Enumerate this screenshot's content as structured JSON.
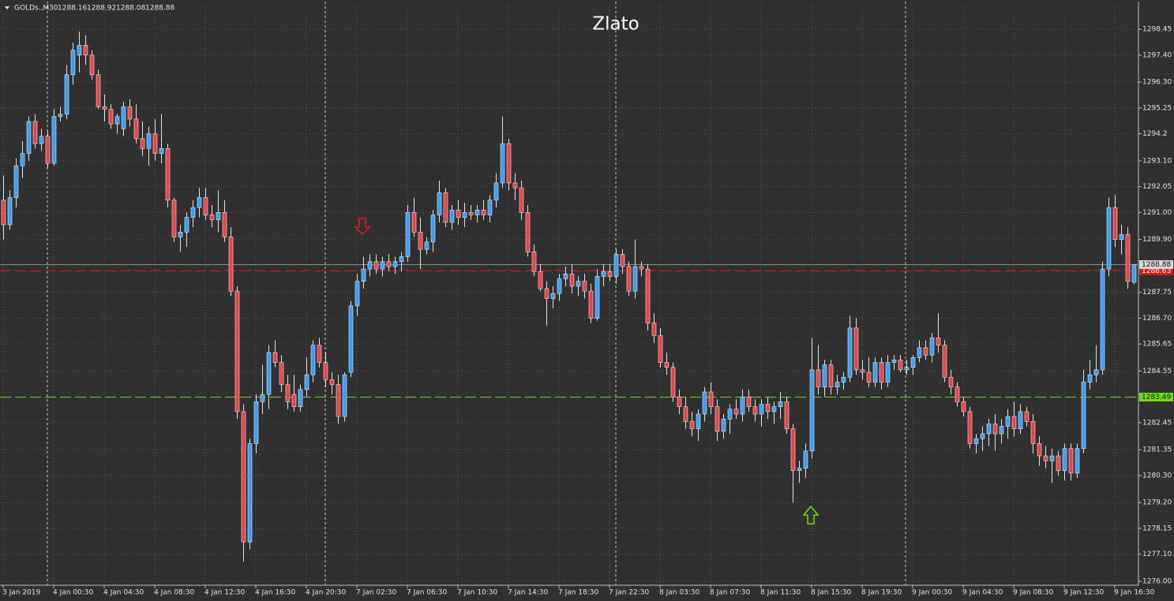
{
  "chart_data": {
    "type": "candlestick",
    "symbol": "GOLDs.,M30",
    "title": "Zlato",
    "up_color": "#3d9df0",
    "down_color": "#e0474c",
    "wick_color": "#e6e6e6",
    "grid": true,
    "ylim": [
      1275.84,
      1299.48
    ],
    "yticks": [
      1298.45,
      {
        "value": 1297.4,
        "label": "1297.40"
      },
      {
        "value": 1296.3,
        "label": "1296.30"
      },
      1295.25,
      1294.2,
      {
        "value": 1293.1,
        "label": "1293.10"
      },
      1292.05,
      {
        "value": 1291,
        "label": "1291.00"
      },
      {
        "value": 1289.9,
        "label": "1289.90"
      },
      1287.75,
      {
        "value": 1286.7,
        "label": "1286.70"
      },
      1285.65,
      1284.55,
      1282.45,
      1281.35,
      {
        "value": 1280.3,
        "label": "1280.30"
      },
      {
        "value": 1279.2,
        "label": "1279.20"
      },
      1278.15,
      {
        "value": 1277.1,
        "label": "1277.10"
      },
      {
        "value": 1276,
        "label": "1276.00"
      }
    ],
    "hlines": [
      {
        "value": 1288.63,
        "color": "#e01818"
      },
      {
        "value": 1283.49,
        "color": "#6ee000"
      }
    ],
    "categories": [
      "3 Jan 2019",
      null,
      null,
      null,
      null,
      null,
      null,
      null,
      "4 Jan 00:30",
      null,
      null,
      null,
      null,
      null,
      null,
      null,
      "4 Jan 04:30",
      null,
      null,
      null,
      null,
      null,
      null,
      null,
      "4 Jan 08:30",
      null,
      null,
      null,
      null,
      null,
      null,
      null,
      "4 Jan 12:30",
      null,
      null,
      null,
      null,
      null,
      null,
      null,
      "4 Jan 16:30",
      null,
      null,
      null,
      null,
      null,
      null,
      null,
      "4 Jan 20:30",
      null,
      null,
      null,
      null,
      null,
      null,
      null,
      "7 Jan 02:30",
      null,
      null,
      null,
      null,
      null,
      null,
      null,
      "7 Jan 06:30",
      null,
      null,
      null,
      null,
      null,
      null,
      null,
      "7 Jan 10:30",
      null,
      null,
      null,
      null,
      null,
      null,
      null,
      "7 Jan 14:30",
      null,
      null,
      null,
      null,
      null,
      null,
      null,
      "7 Jan 18:30",
      null,
      null,
      null,
      null,
      null,
      null,
      null,
      "7 Jan 22:30",
      null,
      null,
      null,
      null,
      null,
      null,
      null,
      "8 Jan 03:30",
      null,
      null,
      null,
      null,
      null,
      null,
      null,
      "8 Jan 07:30",
      null,
      null,
      null,
      null,
      null,
      null,
      null,
      "8 Jan 11:30",
      null,
      null,
      null,
      null,
      null,
      null,
      null,
      "8 Jan 15:30",
      null,
      null,
      null,
      null,
      null,
      null,
      null,
      "8 Jan 19:30",
      null,
      null,
      null,
      null,
      null,
      null,
      null,
      "9 Jan 00:30",
      null,
      null,
      null,
      null,
      null,
      null,
      null,
      "9 Jan 04:30",
      null,
      null,
      null,
      null,
      null,
      null,
      null,
      "9 Jan 08:30",
      null,
      null,
      null,
      null,
      null,
      null,
      null,
      "9 Jan 12:30",
      null,
      null,
      null,
      null,
      null,
      null,
      null,
      "9 Jan 16:30",
      null,
      null,
      null
    ],
    "open": [
      1291.5,
      1290.5,
      1291.6,
      1292.9,
      1293.4,
      1294.7,
      1293.8,
      1294.1,
      1293,
      1294.9,
      1295,
      1296.6,
      1297.4,
      1297.8,
      1297.4,
      1296.6,
      1295.3,
      1295.2,
      1294.6,
      1294.4,
      1295.3,
      1294.8,
      1294,
      1293.6,
      1294.2,
      1293.4,
      1293.6,
      1291.5,
      1290,
      1290.2,
      1290.8,
      1291.2,
      1291.6,
      1290.9,
      1290.7,
      1291,
      1290,
      1287.8,
      1282.9,
      1277.6,
      1281.6,
      1283.3,
      1283.6,
      1285.3,
      1284.9,
      1284,
      1283.6,
      1283.1,
      1283.8,
      1284.4,
      1285.6,
      1284.9,
      1284.2,
      1284,
      1282.7,
      1284.5,
      1287.2,
      1288.2,
      1288.7,
      1289,
      1288.7,
      1289,
      1288.8,
      1289,
      1289.2,
      1291,
      1290.2,
      1289.5,
      1289.8,
      1290.9,
      1291.8,
      1290.6,
      1291.1,
      1290.8,
      1291,
      1290.9,
      1291.1,
      1290.9,
      1291.5,
      1292.2,
      1293.8,
      1292.2,
      1292,
      1291,
      1289.4,
      1288.6,
      1287.9,
      1287.5,
      1287.7,
      1288.3,
      1288.5,
      1288,
      1288.2,
      1287.8,
      1286.7,
      1288.4,
      1288.6,
      1288.4,
      1289.3,
      1288.8,
      1287.8,
      1288.8,
      1288.7,
      1286.5,
      1286,
      1284.9,
      1284.7,
      1283.5,
      1283.1,
      1282.5,
      1282.2,
      1282.8,
      1283.7,
      1283.1,
      1282.1,
      1282.6,
      1283,
      1282.8,
      1283.5,
      1283.1,
      1282.8,
      1283.2,
      1282.9,
      1283.1,
      1283.3,
      1282.2,
      1280.5,
      1280.6,
      1281.3,
      1284.6,
      1283.9,
      1284.8,
      1283.9,
      1284.1,
      1284.3,
      1286.3,
      1284.6,
      1284.5,
      1284.1,
      1284.9,
      1284.1,
      1284.9,
      1285,
      1284.6,
      1284.7,
      1285.1,
      1285.5,
      1285.2,
      1285.9,
      1285.6,
      1284.3,
      1283.9,
      1283.3,
      1282.9,
      1281.6,
      1281.8,
      1282,
      1282.4,
      1282,
      1282.3,
      1282.7,
      1282.2,
      1282.9,
      1282.5,
      1281.6,
      1281.1,
      1280.9,
      1281.1,
      1280.5,
      1281.4,
      1280.4,
      1281.4,
      1284.1,
      1284.4,
      1284.6,
      1288.7,
      1291.2,
      1289.9,
      1290.1,
      1288.16
    ],
    "high": [
      1292.5,
      1291.9,
      1293.2,
      1293.9,
      1294.9,
      1295,
      1294.4,
      1294.3,
      1295.2,
      1295.3,
      1297,
      1297.9,
      1298.35,
      1298.2,
      1297.6,
      1296.8,
      1295.8,
      1295.4,
      1295,
      1295.5,
      1295.6,
      1295.4,
      1294.7,
      1294.5,
      1294.8,
      1295,
      1293.8,
      1291.6,
      1290.5,
      1291,
      1291.5,
      1292,
      1292,
      1291.3,
      1291.9,
      1291.5,
      1290.4,
      1288,
      1283.2,
      1281.8,
      1283.6,
      1284.8,
      1285.6,
      1285.8,
      1285.2,
      1284.4,
      1284.4,
      1284,
      1285.1,
      1285.8,
      1285.9,
      1285.3,
      1284.5,
      1284.4,
      1284.5,
      1287.4,
      1288.5,
      1289.2,
      1289.3,
      1289.3,
      1289.2,
      1289.3,
      1289.2,
      1289.4,
      1291.3,
      1291.6,
      1290.8,
      1290,
      1291.1,
      1292.3,
      1292,
      1291.3,
      1291.5,
      1291.4,
      1291.3,
      1291.3,
      1291.5,
      1291.7,
      1292.6,
      1294.9,
      1294,
      1292.6,
      1292.3,
      1291.3,
      1289.7,
      1288.9,
      1288.2,
      1288,
      1288.5,
      1288.8,
      1288.9,
      1288.4,
      1288.5,
      1288.1,
      1288.7,
      1288.9,
      1288.9,
      1289.5,
      1289.5,
      1289,
      1289.9,
      1289,
      1288.9,
      1286.9,
      1286.3,
      1285.3,
      1284.9,
      1283.8,
      1283.5,
      1282.9,
      1283,
      1283.9,
      1284.1,
      1283.4,
      1282.8,
      1283.2,
      1283.4,
      1283.8,
      1283.8,
      1283.4,
      1283.4,
      1283.5,
      1283.3,
      1283.7,
      1283.5,
      1282.4,
      1280.9,
      1281.6,
      1285.9,
      1285.6,
      1285,
      1285,
      1284.4,
      1284.5,
      1286.8,
      1286.7,
      1285,
      1285.1,
      1285.1,
      1285.1,
      1285.2,
      1285.2,
      1285.2,
      1285,
      1285.2,
      1285.8,
      1285.8,
      1286.1,
      1286.9,
      1285.8,
      1284.6,
      1284.1,
      1283.5,
      1283.1,
      1282,
      1282.3,
      1282.6,
      1282.8,
      1282.6,
      1283,
      1283.3,
      1283.2,
      1283.1,
      1282.8,
      1281.9,
      1281.5,
      1281.4,
      1281.3,
      1281.6,
      1281.6,
      1281.6,
      1284.6,
      1285,
      1285.6,
      1289,
      1291.6,
      1291.7,
      1290.5,
      1290.4,
      1288.92
    ],
    "low": [
      1289.9,
      1290.3,
      1291.2,
      1292.4,
      1293.1,
      1293.6,
      1293.5,
      1292.8,
      1292.9,
      1294.7,
      1294.8,
      1296.2,
      1296.7,
      1297,
      1296.4,
      1295.2,
      1294.7,
      1294.4,
      1294.2,
      1294.1,
      1294.5,
      1293.8,
      1293.3,
      1292.9,
      1293.1,
      1293,
      1291.2,
      1289.8,
      1289.4,
      1289.6,
      1290.4,
      1290.8,
      1290.7,
      1290.4,
      1290.2,
      1289.8,
      1287.6,
      1282.6,
      1276.8,
      1277.3,
      1281.2,
      1282.8,
      1283,
      1284.7,
      1283.7,
      1283,
      1282.9,
      1282.9,
      1283.5,
      1284.1,
      1284.7,
      1283.9,
      1283.6,
      1282.4,
      1282.5,
      1284.3,
      1286.8,
      1287.9,
      1288.4,
      1288.5,
      1288.4,
      1288.6,
      1288.5,
      1288.6,
      1289,
      1290,
      1288.7,
      1289.3,
      1289.4,
      1290.6,
      1290.4,
      1290.3,
      1290.5,
      1290.4,
      1290.7,
      1290.6,
      1290.7,
      1290.6,
      1291.2,
      1292,
      1291.9,
      1291.5,
      1290.7,
      1289.2,
      1288.4,
      1287.8,
      1286.4,
      1287.1,
      1287.4,
      1288,
      1287.7,
      1287.6,
      1287.5,
      1286.5,
      1286.6,
      1288,
      1288.2,
      1288.1,
      1288.5,
      1287.6,
      1287.5,
      1288.4,
      1286.2,
      1285.7,
      1284.7,
      1284.4,
      1283.3,
      1282.8,
      1282.2,
      1281.9,
      1281.7,
      1282.5,
      1282.8,
      1281.7,
      1281.8,
      1282,
      1282.6,
      1282.5,
      1282.9,
      1282.5,
      1282.3,
      1282.6,
      1282.4,
      1282.6,
      1282,
      1279.2,
      1280,
      1280.2,
      1281,
      1283.6,
      1283.5,
      1283.6,
      1283.6,
      1283.8,
      1284.1,
      1284.4,
      1284.2,
      1283.9,
      1283.9,
      1283.8,
      1283.9,
      1284.6,
      1284.5,
      1284.4,
      1284.4,
      1284.9,
      1285,
      1284.9,
      1285.3,
      1284.1,
      1283.6,
      1283.1,
      1282.7,
      1281.4,
      1281.2,
      1281.3,
      1281.5,
      1281.3,
      1281.6,
      1281.8,
      1281.9,
      1282,
      1282.3,
      1281.2,
      1280.7,
      1280.6,
      1280,
      1280.3,
      1280.1,
      1280.1,
      1280.2,
      1281.2,
      1283.8,
      1284.1,
      1284.4,
      1288.4,
      1289.6,
      1289.3,
      1287.9,
      1288.08
    ],
    "close": [
      1290.5,
      1291.6,
      1292.9,
      1293.4,
      1294.7,
      1293.8,
      1294.1,
      1293,
      1294.9,
      1295,
      1296.6,
      1297.6,
      1297.8,
      1297.4,
      1296.6,
      1295.3,
      1295.2,
      1294.6,
      1294.9,
      1295.3,
      1294.8,
      1294,
      1293.6,
      1294.2,
      1293.4,
      1293.6,
      1291.5,
      1290,
      1290.2,
      1290.8,
      1291.2,
      1291.6,
      1290.9,
      1290.7,
      1291,
      1290,
      1287.8,
      1282.9,
      1277.6,
      1281.6,
      1283.3,
      1283.6,
      1285.3,
      1284.9,
      1284,
      1283.3,
      1283.1,
      1283.8,
      1284.4,
      1285.6,
      1284.9,
      1284.2,
      1284,
      1282.7,
      1284.4,
      1287.2,
      1288.2,
      1288.7,
      1289,
      1288.7,
      1289,
      1288.8,
      1289,
      1289.2,
      1291,
      1290.2,
      1289.5,
      1289.8,
      1290.9,
      1291.8,
      1290.6,
      1291.1,
      1290.8,
      1291,
      1290.9,
      1291.1,
      1290.9,
      1291.5,
      1292.2,
      1293.8,
      1292.2,
      1292,
      1291,
      1289.4,
      1288.6,
      1287.9,
      1287.5,
      1287.7,
      1288.3,
      1288.5,
      1288,
      1288.2,
      1287.8,
      1286.7,
      1288.4,
      1288.6,
      1288.4,
      1289.3,
      1288.8,
      1287.8,
      1288.8,
      1288.7,
      1286.5,
      1286,
      1284.9,
      1284.7,
      1283.5,
      1283.1,
      1282.5,
      1282.2,
      1282.8,
      1283.7,
      1283.1,
      1282.1,
      1282.6,
      1283,
      1282.8,
      1283.5,
      1283.1,
      1282.8,
      1283.2,
      1282.9,
      1283.1,
      1283.3,
      1282.2,
      1280.5,
      1280.6,
      1281.3,
      1284.6,
      1283.9,
      1284.8,
      1283.9,
      1284.1,
      1284.3,
      1286.3,
      1284.6,
      1284.5,
      1284.1,
      1284.9,
      1284.1,
      1284.9,
      1285,
      1284.6,
      1284.7,
      1285.1,
      1285.5,
      1285.2,
      1285.9,
      1285.6,
      1284.3,
      1283.9,
      1283.3,
      1282.9,
      1281.6,
      1281.8,
      1282,
      1282.4,
      1282,
      1282.3,
      1282.7,
      1282.2,
      1282.9,
      1282.5,
      1281.6,
      1281.1,
      1280.9,
      1281.1,
      1280.5,
      1281.4,
      1280.4,
      1281.4,
      1284.1,
      1284.4,
      1284.6,
      1288.7,
      1291.2,
      1289.9,
      1290.1,
      1288.2,
      1288.88
    ]
  }
}
